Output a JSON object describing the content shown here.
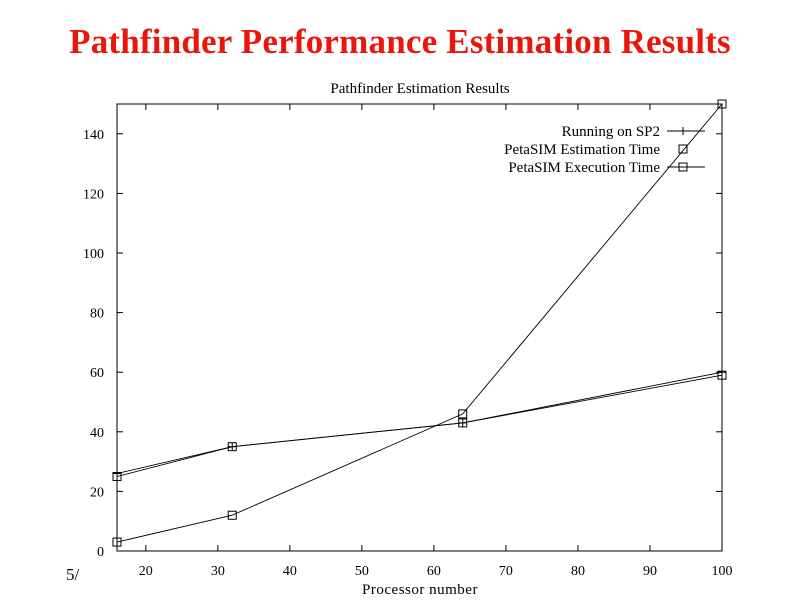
{
  "slide": {
    "title": "Pathfinder Performance Estimation Results",
    "page_number": "5/"
  },
  "chart_data": {
    "type": "line",
    "title": "Pathfinder Estimation Results",
    "xlabel": "Processor number",
    "ylabel": "",
    "xlim": [
      16,
      100
    ],
    "ylim": [
      0,
      150
    ],
    "xticks": [
      20,
      30,
      40,
      50,
      60,
      70,
      80,
      90,
      100
    ],
    "yticks": [
      0,
      20,
      40,
      60,
      80,
      100,
      120,
      140
    ],
    "grid": false,
    "legend_position": "top-right",
    "series": [
      {
        "name": "Running on SP2",
        "marker": "plus",
        "x": [
          16,
          32,
          64,
          100
        ],
        "y": [
          26,
          35,
          43,
          60
        ]
      },
      {
        "name": "PetaSIM Estimation Time",
        "marker": "square",
        "x": [
          16,
          32,
          64,
          100
        ],
        "y": [
          3,
          12,
          46,
          150
        ]
      },
      {
        "name": "PetaSIM Execution Time",
        "marker": "square",
        "x": [
          16,
          32,
          64,
          100
        ],
        "y": [
          25,
          35,
          43,
          59
        ]
      }
    ]
  }
}
